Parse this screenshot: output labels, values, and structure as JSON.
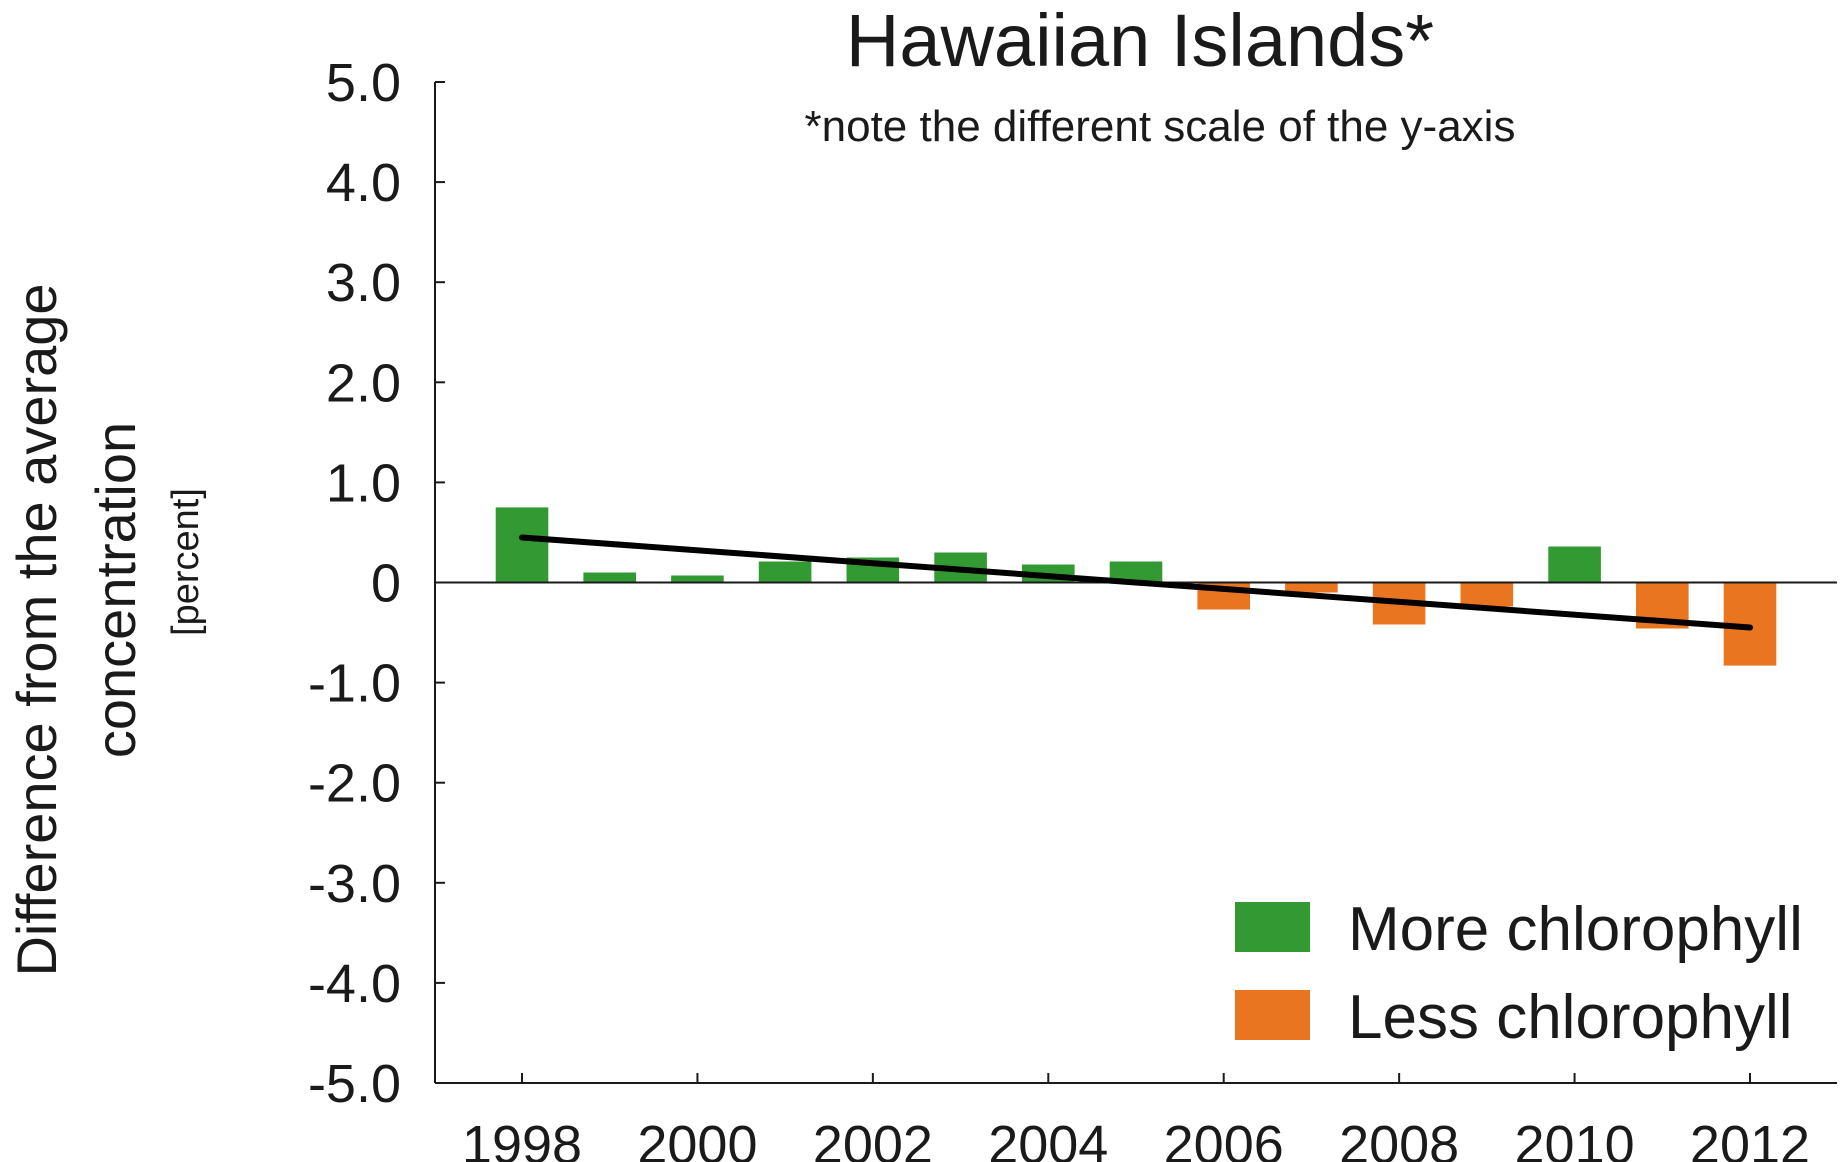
{
  "chart_data": {
    "type": "bar",
    "title": "Hawaiian Islands*",
    "subtitle": "*note the different scale of the y-axis",
    "ylabel_lines": [
      "Difference from the average",
      "concentration"
    ],
    "yunit": "[percent]",
    "ylim": [
      -5.0,
      5.0
    ],
    "yticks": [
      "5.0",
      "4.0",
      "3.0",
      "2.0",
      "1.0",
      "0",
      "-1.0",
      "-2.0",
      "-3.0",
      "-4.0",
      "-5.0"
    ],
    "ytick_values": [
      5,
      4,
      3,
      2,
      1,
      0,
      -1,
      -2,
      -3,
      -4,
      -5
    ],
    "xtick_labels": [
      "1998",
      "2000",
      "2002",
      "2004",
      "2006",
      "2008",
      "2010",
      "2012"
    ],
    "x": [
      1998,
      1999,
      2000,
      2001,
      2002,
      2003,
      2004,
      2005,
      2006,
      2007,
      2008,
      2009,
      2010,
      2011,
      2012
    ],
    "values": [
      0.75,
      0.1,
      0.07,
      0.21,
      0.25,
      0.3,
      0.18,
      0.21,
      -0.27,
      -0.1,
      -0.42,
      -0.24,
      0.36,
      -0.46,
      -0.83
    ],
    "trend": {
      "x": [
        1998,
        2012
      ],
      "y": [
        0.45,
        -0.45
      ]
    },
    "legend": [
      {
        "label": "More chlorophyll",
        "color": "#339933"
      },
      {
        "label": "Less chlorophyll",
        "color": "#ea7520"
      }
    ],
    "legend_position": "bottom-right",
    "colors": {
      "positive": "#339933",
      "negative": "#ea7520",
      "trend": "#000000",
      "axis": "#1a1a1a"
    },
    "grid": false
  }
}
